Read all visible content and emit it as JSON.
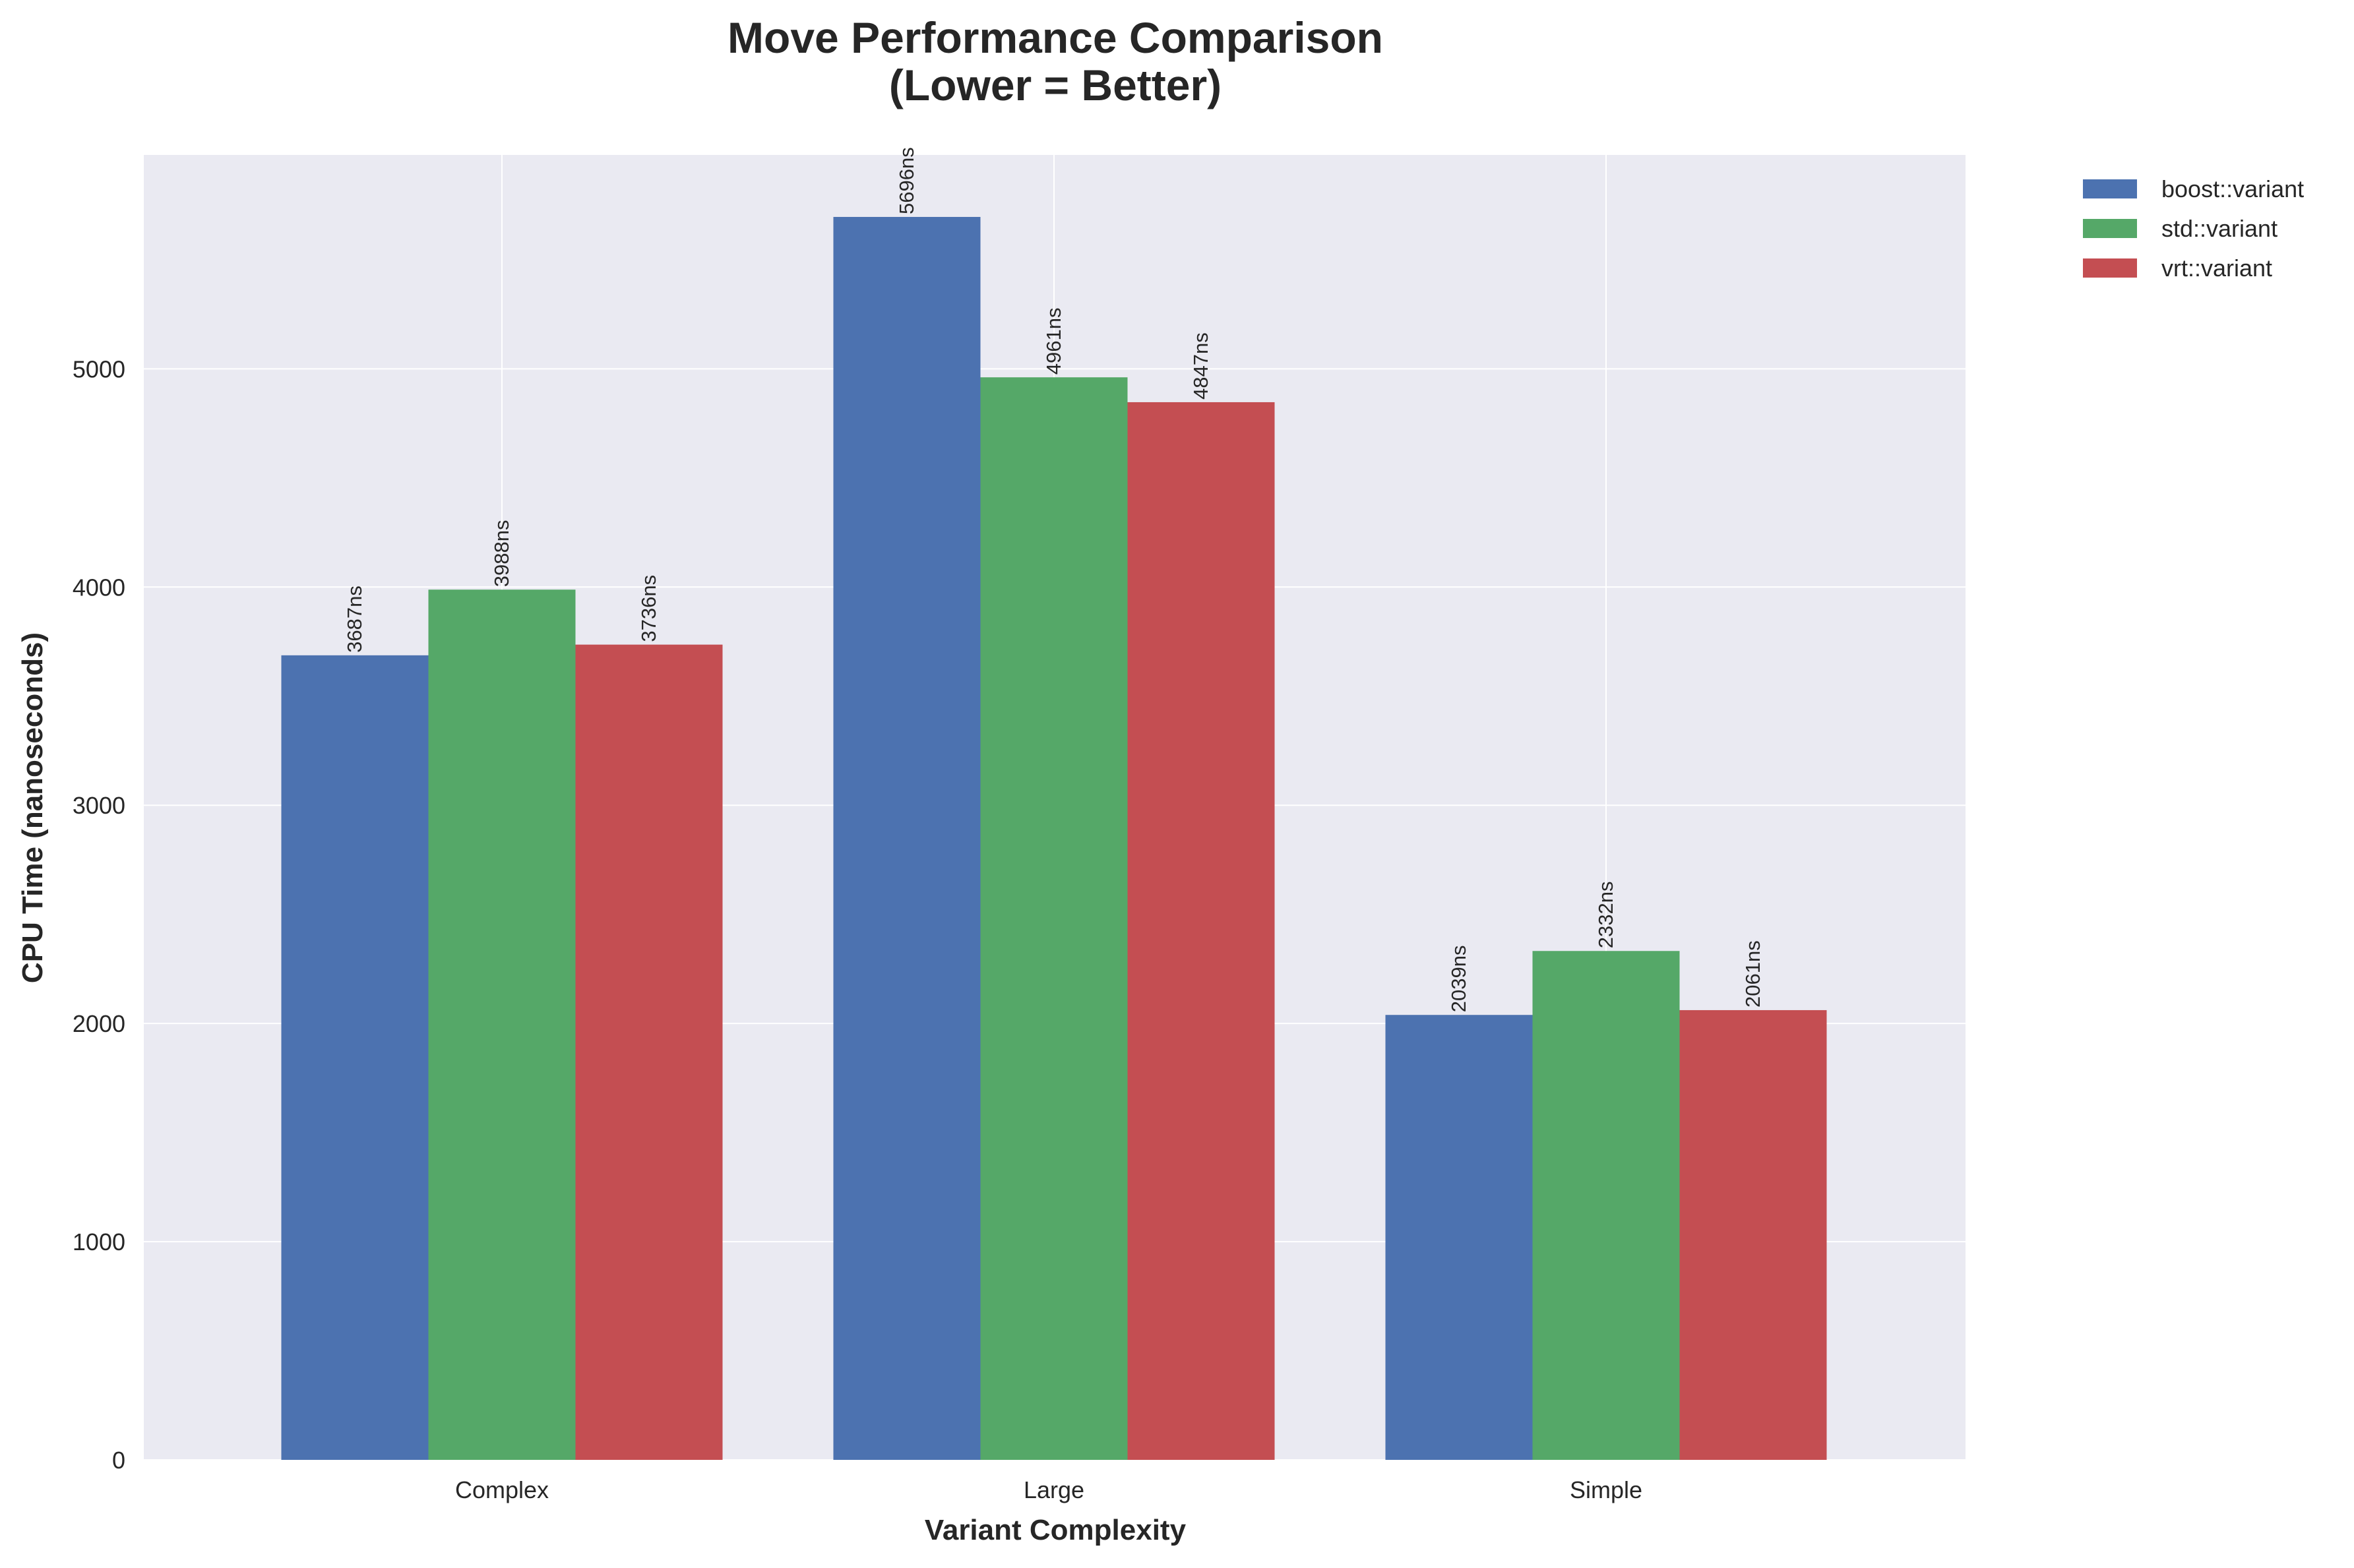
{
  "chart_data": {
    "type": "bar",
    "title": [
      "Move Performance Comparison",
      "(Lower = Better)"
    ],
    "xlabel": "Variant Complexity",
    "ylabel": "CPU Time (nanoseconds)",
    "categories": [
      "Complex",
      "Large",
      "Simple"
    ],
    "series": [
      {
        "name": "boost::variant",
        "color": "#4c72b0",
        "values": [
          3687,
          5696,
          2039
        ]
      },
      {
        "name": "std::variant",
        "color": "#55a868",
        "values": [
          3988,
          4961,
          2332
        ]
      },
      {
        "name": "vrt::variant",
        "color": "#c44e52",
        "values": [
          3736,
          4847,
          2061
        ]
      }
    ],
    "value_suffix": "ns",
    "ylim": [
      0,
      5980
    ],
    "yticks": [
      0,
      1000,
      2000,
      3000,
      4000,
      5000
    ],
    "grid": true,
    "legend": "outside-top-right",
    "plot_background": "#eaeaf2"
  }
}
